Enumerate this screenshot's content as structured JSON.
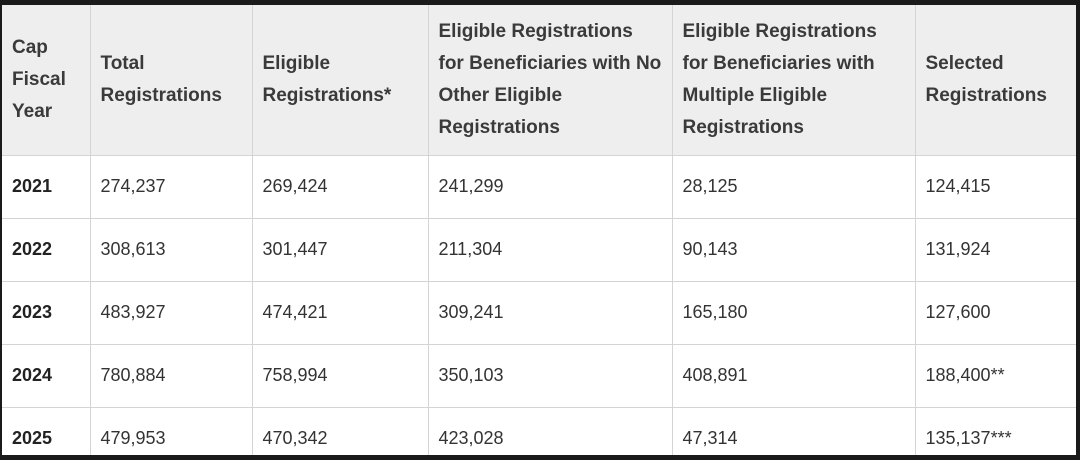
{
  "table": {
    "headers": [
      "Cap Fiscal Year",
      "Total Registrations",
      "Eligible Registrations*",
      "Eligible Registrations for Beneficiaries with No Other Eligible Registrations",
      "Eligible Registrations for Beneficiaries with Multiple Eligible Registrations",
      "Selected Registrations"
    ],
    "rows": [
      [
        "2021",
        "274,237",
        "269,424",
        "241,299",
        "28,125",
        "124,415"
      ],
      [
        "2022",
        "308,613",
        "301,447",
        "211,304",
        "90,143",
        "131,924"
      ],
      [
        "2023",
        "483,927",
        "474,421",
        "309,241",
        "165,180",
        "127,600"
      ],
      [
        "2024",
        "780,884",
        "758,994",
        "350,103",
        "408,891",
        "188,400**"
      ],
      [
        "2025",
        "479,953",
        "470,342",
        "423,028",
        "47,314",
        "135,137***"
      ]
    ]
  }
}
